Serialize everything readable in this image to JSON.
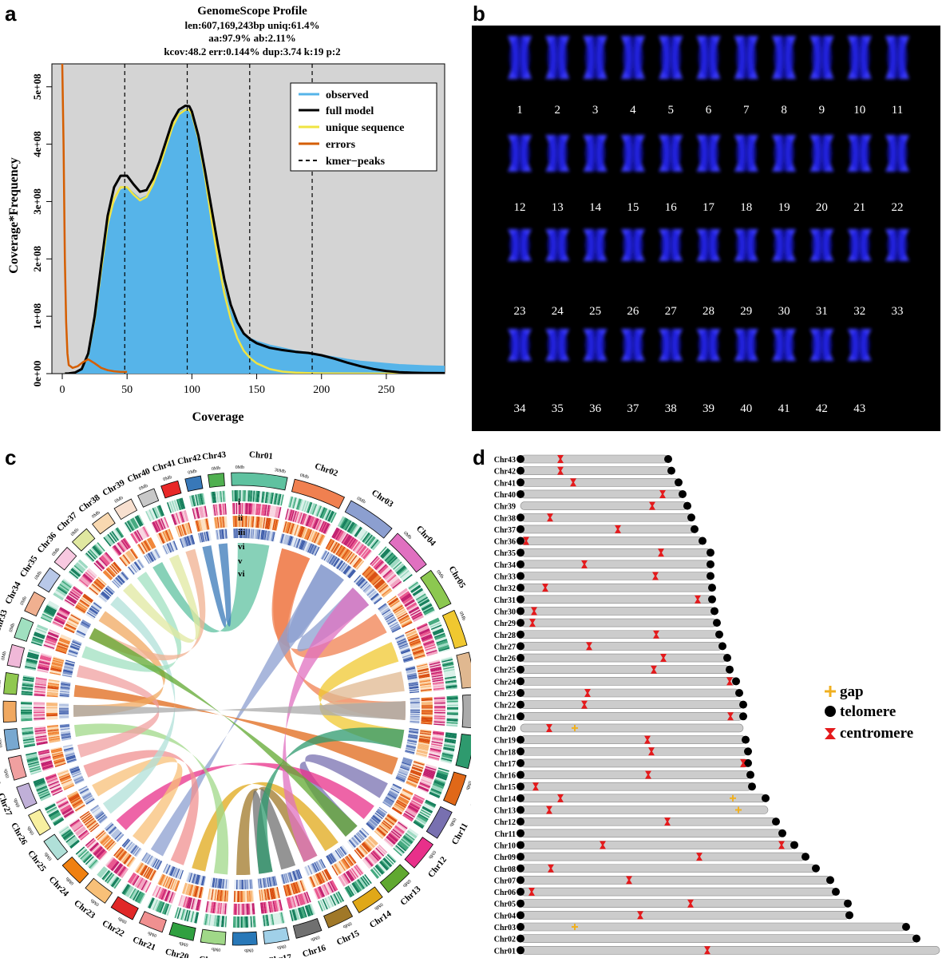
{
  "panels": {
    "a": "a",
    "b": "b",
    "c": "c",
    "d": "d"
  },
  "panel_a": {
    "title": "GenomeScope Profile",
    "stats_line1": "len:607,169,243bp uniq:61.4%",
    "stats_line2": "aa:97.9% ab:2.11%",
    "stats_line3": "kcov:48.2 err:0.144%  dup:3.74  k:19 p:2",
    "legend": {
      "observed": "observed",
      "full_model": "full model",
      "unique_sequence": "unique sequence",
      "errors": "errors",
      "kmer_peaks": "kmer−peaks"
    },
    "colors": {
      "observed": "#56b4e9",
      "full_model": "#000000",
      "unique": "#f0e442",
      "errors": "#d55e00",
      "bg": "#d4d4d4"
    }
  },
  "chart_data": {
    "type": "area",
    "xlabel": "Coverage",
    "ylabel": "Coverage*Frequency",
    "xlim": [
      -8,
      295
    ],
    "ylim": [
      0,
      540000000.0
    ],
    "x_ticks": [
      0,
      50,
      100,
      150,
      200,
      250
    ],
    "x_tick_labels": [
      "0",
      "50",
      "100",
      "150",
      "200",
      "250"
    ],
    "y_ticks": [
      0,
      100000000.0,
      200000000.0,
      300000000.0,
      400000000.0,
      500000000.0
    ],
    "y_tick_labels": [
      "0e+00",
      "1e+08",
      "2e+08",
      "3e+08",
      "4e+08",
      "5e+08"
    ],
    "kmer_peaks": [
      48.2,
      96.4,
      144.6,
      192.8
    ],
    "series": [
      {
        "name": "observed",
        "x": [
          2,
          5,
          10,
          15,
          20,
          25,
          30,
          35,
          40,
          45,
          50,
          55,
          60,
          65,
          70,
          75,
          80,
          85,
          90,
          95,
          98,
          100,
          105,
          110,
          115,
          120,
          125,
          130,
          135,
          140,
          145,
          150,
          160,
          170,
          180,
          190,
          200,
          210,
          220,
          230,
          240,
          250,
          260,
          270,
          280,
          295
        ],
        "y": [
          0,
          500000.0,
          2000000.0,
          6000000.0,
          25000000.0,
          80000000.0,
          170000000.0,
          250000000.0,
          295000000.0,
          320000000.0,
          325000000.0,
          315000000.0,
          305000000.0,
          310000000.0,
          330000000.0,
          360000000.0,
          395000000.0,
          430000000.0,
          455000000.0,
          462000000.0,
          460000000.0,
          450000000.0,
          400000000.0,
          335000000.0,
          270000000.0,
          205000000.0,
          150000000.0,
          110000000.0,
          85000000.0,
          70000000.0,
          62000000.0,
          57000000.0,
          50000000.0,
          45000000.0,
          40000000.0,
          37000000.0,
          33000000.0,
          29000000.0,
          25000000.0,
          22000000.0,
          20000000.0,
          18000000.0,
          16000000.0,
          15000000.0,
          14000000.0,
          13000000.0
        ]
      },
      {
        "name": "full model",
        "x": [
          2,
          5,
          10,
          15,
          20,
          25,
          30,
          35,
          40,
          45,
          50,
          55,
          60,
          65,
          70,
          75,
          80,
          85,
          90,
          95,
          98,
          100,
          105,
          110,
          115,
          120,
          125,
          130,
          135,
          140,
          145,
          150,
          160,
          170,
          180,
          190,
          200,
          210,
          220,
          230,
          240,
          250,
          260,
          270,
          280,
          295
        ],
        "y": [
          0,
          300000.0,
          2000000.0,
          8000000.0,
          35000000.0,
          100000000.0,
          190000000.0,
          275000000.0,
          325000000.0,
          345000000.0,
          345000000.0,
          330000000.0,
          317000000.0,
          320000000.0,
          340000000.0,
          370000000.0,
          405000000.0,
          440000000.0,
          460000000.0,
          467000000.0,
          466000000.0,
          457000000.0,
          415000000.0,
          355000000.0,
          290000000.0,
          225000000.0,
          165000000.0,
          120000000.0,
          90000000.0,
          70000000.0,
          60000000.0,
          53000000.0,
          45000000.0,
          41000000.0,
          38000000.0,
          36000000.0,
          32000000.0,
          26000000.0,
          19000000.0,
          13000000.0,
          8000000.0,
          4500000.0,
          2500000.0,
          1500000.0,
          1000000.0,
          800000.0
        ]
      },
      {
        "name": "unique sequence",
        "x": [
          2,
          5,
          10,
          15,
          20,
          25,
          30,
          35,
          40,
          45,
          50,
          55,
          60,
          65,
          70,
          75,
          80,
          85,
          90,
          95,
          98,
          100,
          105,
          110,
          115,
          120,
          125,
          130,
          135,
          140,
          145,
          150,
          160,
          170,
          180,
          190,
          200,
          220,
          240,
          260,
          295
        ],
        "y": [
          0,
          300000.0,
          2000000.0,
          8000000.0,
          33000000.0,
          95000000.0,
          180000000.0,
          260000000.0,
          305000000.0,
          325000000.0,
          325000000.0,
          312000000.0,
          302000000.0,
          308000000.0,
          330000000.0,
          360000000.0,
          395000000.0,
          430000000.0,
          452000000.0,
          460000000.0,
          460000000.0,
          452000000.0,
          410000000.0,
          345000000.0,
          270000000.0,
          200000000.0,
          140000000.0,
          95000000.0,
          62000000.0,
          40000000.0,
          27000000.0,
          18000000.0,
          8000000.0,
          3500000.0,
          1800000.0,
          1000000.0,
          600000.0,
          300000.0,
          100000.0,
          0,
          0
        ]
      },
      {
        "name": "errors",
        "x": [
          0,
          1,
          2,
          3,
          4,
          5,
          8,
          12,
          16,
          20,
          25,
          30,
          35,
          40,
          45,
          50
        ],
        "y": [
          540000000.0,
          400000000.0,
          200000000.0,
          90000000.0,
          35000000.0,
          15000000.0,
          10000000.0,
          13000000.0,
          20000000.0,
          25000000.0,
          18000000.0,
          10000000.0,
          6000000.0,
          4000000.0,
          3000000.0,
          3000000.0
        ]
      }
    ]
  },
  "panel_b": {
    "labels": [
      "1",
      "2",
      "3",
      "4",
      "5",
      "6",
      "7",
      "8",
      "9",
      "10",
      "11",
      "12",
      "13",
      "14",
      "15",
      "16",
      "17",
      "18",
      "19",
      "20",
      "21",
      "22",
      "23",
      "24",
      "25",
      "26",
      "27",
      "28",
      "29",
      "30",
      "31",
      "32",
      "33",
      "34",
      "35",
      "36",
      "37",
      "38",
      "39",
      "40",
      "41",
      "42",
      "43"
    ]
  },
  "panel_c": {
    "chromosomes": [
      "Chr01",
      "Chr02",
      "Chr03",
      "Chr04",
      "Chr05",
      "Chr06",
      "Chr07",
      "Chr08",
      "Chr09",
      "Chr10",
      "Chr11",
      "Chr12",
      "Chr13",
      "Chr14",
      "Chr15",
      "Chr16",
      "Chr17",
      "Chr18",
      "Chr19",
      "Chr20",
      "Chr21",
      "Chr22",
      "Chr23",
      "Chr24",
      "Chr25",
      "Chr26",
      "Chr27",
      "Chr28",
      "Chr29",
      "Chr30",
      "Chr31",
      "Chr32",
      "Chr33",
      "Chr34",
      "Chr35",
      "Chr36",
      "Chr37",
      "Chr38",
      "Chr39",
      "Chr40",
      "Chr41",
      "Chr42",
      "Chr43"
    ],
    "lengths": [
      32,
      30,
      28,
      24,
      22,
      21,
      20,
      19,
      19,
      18,
      17,
      17,
      16,
      16,
      15,
      15,
      14,
      14,
      14,
      14,
      14,
      14,
      14,
      14,
      13,
      13,
      13,
      13,
      12,
      12,
      12,
      12,
      12,
      12,
      12,
      11,
      11,
      11,
      11,
      10,
      10,
      9,
      9
    ],
    "colors": [
      "#5fc2a0",
      "#f08050",
      "#8c9fd0",
      "#e070c0",
      "#8cc850",
      "#f0c830",
      "#e0b890",
      "#aaaaaa",
      "#2e9a6e",
      "#e06818",
      "#7870b0",
      "#e8308a",
      "#60a830",
      "#e0a818",
      "#a07828",
      "#707070",
      "#a0d0e8",
      "#2878b8",
      "#a0d888",
      "#30a040",
      "#f09090",
      "#e02828",
      "#f8c078",
      "#f08010",
      "#b0e0d8",
      "#f8f0a0",
      "#c0b0d8",
      "#f0a0a0",
      "#78a8d0",
      "#f0a860",
      "#90c850",
      "#f0b8d8",
      "#a0e0c0",
      "#f0b090",
      "#b8c8e8",
      "#f8c8e0",
      "#e0e8a0",
      "#f8d8b0",
      "#f8e0d0",
      "#c8c8c8",
      "#e82828",
      "#3878b8",
      "#50b050"
    ],
    "track_labels": [
      "i",
      "ii",
      "iii",
      "vi",
      "v",
      "vi"
    ],
    "tick_0": "0Mb",
    "tick_30": "30Mb"
  },
  "panel_d": {
    "legend": {
      "gap": "gap",
      "telomere": "telomere",
      "centromere": "centromere"
    },
    "colors": {
      "bar": "#cccccc",
      "telomere": "#000000",
      "centromere": "#e41a1c",
      "gap": "#f0b020"
    },
    "rows": [
      {
        "name": "Chr43",
        "len": 185,
        "tel": [
          1,
          1
        ],
        "cen": [
          50
        ],
        "gaps": []
      },
      {
        "name": "Chr42",
        "len": 189,
        "tel": [
          1,
          1
        ],
        "cen": [
          50
        ],
        "gaps": []
      },
      {
        "name": "Chr41",
        "len": 198,
        "tel": [
          1,
          1
        ],
        "cen": [
          66
        ],
        "gaps": []
      },
      {
        "name": "Chr40",
        "len": 203,
        "tel": [
          1,
          1
        ],
        "cen": [
          178
        ],
        "gaps": []
      },
      {
        "name": "Chr39",
        "len": 209,
        "tel": [
          0,
          1
        ],
        "cen": [
          165
        ],
        "gaps": []
      },
      {
        "name": "Chr38",
        "len": 214,
        "tel": [
          1,
          1
        ],
        "cen": [
          37
        ],
        "gaps": []
      },
      {
        "name": "Chr37",
        "len": 218,
        "tel": [
          1,
          1
        ],
        "cen": [
          122
        ],
        "gaps": []
      },
      {
        "name": "Chr36",
        "len": 228,
        "tel": [
          1,
          1
        ],
        "cen": [
          7
        ],
        "gaps": []
      },
      {
        "name": "Chr35",
        "len": 238,
        "tel": [
          1,
          1
        ],
        "cen": [
          176
        ],
        "gaps": []
      },
      {
        "name": "Chr34",
        "len": 238,
        "tel": [
          1,
          1
        ],
        "cen": [
          80
        ],
        "gaps": []
      },
      {
        "name": "Chr33",
        "len": 238,
        "tel": [
          1,
          1
        ],
        "cen": [
          169
        ],
        "gaps": []
      },
      {
        "name": "Chr32",
        "len": 240,
        "tel": [
          1,
          1
        ],
        "cen": [
          31
        ],
        "gaps": []
      },
      {
        "name": "Chr31",
        "len": 240,
        "tel": [
          1,
          1
        ],
        "cen": [
          222
        ],
        "gaps": []
      },
      {
        "name": "Chr30",
        "len": 243,
        "tel": [
          1,
          1
        ],
        "cen": [
          17
        ],
        "gaps": []
      },
      {
        "name": "Chr29",
        "len": 246,
        "tel": [
          1,
          1
        ],
        "cen": [
          15
        ],
        "gaps": []
      },
      {
        "name": "Chr28",
        "len": 249,
        "tel": [
          1,
          1
        ],
        "cen": [
          170
        ],
        "gaps": []
      },
      {
        "name": "Chr27",
        "len": 253,
        "tel": [
          1,
          1
        ],
        "cen": [
          86
        ],
        "gaps": []
      },
      {
        "name": "Chr26",
        "len": 259,
        "tel": [
          1,
          1
        ],
        "cen": [
          179
        ],
        "gaps": []
      },
      {
        "name": "Chr25",
        "len": 262,
        "tel": [
          1,
          1
        ],
        "cen": [
          167
        ],
        "gaps": []
      },
      {
        "name": "Chr24",
        "len": 270,
        "tel": [
          1,
          1
        ],
        "cen": [
          262
        ],
        "gaps": []
      },
      {
        "name": "Chr23",
        "len": 274,
        "tel": [
          1,
          1
        ],
        "cen": [
          84
        ],
        "gaps": []
      },
      {
        "name": "Chr22",
        "len": 279,
        "tel": [
          1,
          1
        ],
        "cen": [
          80
        ],
        "gaps": []
      },
      {
        "name": "Chr21",
        "len": 279,
        "tel": [
          1,
          1
        ],
        "cen": [
          263
        ],
        "gaps": []
      },
      {
        "name": "Chr20",
        "len": 279,
        "tel": [
          0,
          0
        ],
        "cen": [
          36
        ],
        "gaps": [
          68
        ]
      },
      {
        "name": "Chr19",
        "len": 282,
        "tel": [
          1,
          1
        ],
        "cen": [
          159
        ],
        "gaps": []
      },
      {
        "name": "Chr18",
        "len": 285,
        "tel": [
          1,
          1
        ],
        "cen": [
          164
        ],
        "gaps": []
      },
      {
        "name": "Chr17",
        "len": 285,
        "tel": [
          1,
          1
        ],
        "cen": [
          279
        ],
        "gaps": []
      },
      {
        "name": "Chr16",
        "len": 288,
        "tel": [
          1,
          1
        ],
        "cen": [
          160
        ],
        "gaps": []
      },
      {
        "name": "Chr15",
        "len": 290,
        "tel": [
          1,
          1
        ],
        "cen": [
          19
        ],
        "gaps": []
      },
      {
        "name": "Chr14",
        "len": 307,
        "tel": [
          1,
          1
        ],
        "cen": [
          50
        ],
        "gaps": [
          266
        ]
      },
      {
        "name": "Chr13",
        "len": 310,
        "tel": [
          1,
          0
        ],
        "cen": [
          36
        ],
        "gaps": [
          273
        ]
      },
      {
        "name": "Chr12",
        "len": 320,
        "tel": [
          1,
          1
        ],
        "cen": [
          184
        ],
        "gaps": []
      },
      {
        "name": "Chr11",
        "len": 328,
        "tel": [
          1,
          1
        ],
        "cen": [],
        "gaps": []
      },
      {
        "name": "Chr10",
        "len": 343,
        "tel": [
          1,
          1
        ],
        "cen": [
          103,
          327
        ],
        "gaps": []
      },
      {
        "name": "Chr09",
        "len": 357,
        "tel": [
          1,
          1
        ],
        "cen": [
          224
        ],
        "gaps": []
      },
      {
        "name": "Chr08",
        "len": 370,
        "tel": [
          1,
          1
        ],
        "cen": [
          38
        ],
        "gaps": []
      },
      {
        "name": "Chr07",
        "len": 388,
        "tel": [
          1,
          1
        ],
        "cen": [
          136
        ],
        "gaps": []
      },
      {
        "name": "Chr06",
        "len": 395,
        "tel": [
          1,
          1
        ],
        "cen": [
          14
        ],
        "gaps": []
      },
      {
        "name": "Chr05",
        "len": 410,
        "tel": [
          1,
          1
        ],
        "cen": [
          213
        ],
        "gaps": []
      },
      {
        "name": "Chr04",
        "len": 412,
        "tel": [
          1,
          1
        ],
        "cen": [
          150
        ],
        "gaps": []
      },
      {
        "name": "Chr03",
        "len": 483,
        "tel": [
          1,
          1
        ],
        "cen": [],
        "gaps": [
          68
        ]
      },
      {
        "name": "Chr02",
        "len": 496,
        "tel": [
          1,
          1
        ],
        "cen": [],
        "gaps": []
      },
      {
        "name": "Chr01",
        "len": 525,
        "tel": [
          1,
          0
        ],
        "cen": [
          234
        ],
        "gaps": []
      }
    ]
  }
}
